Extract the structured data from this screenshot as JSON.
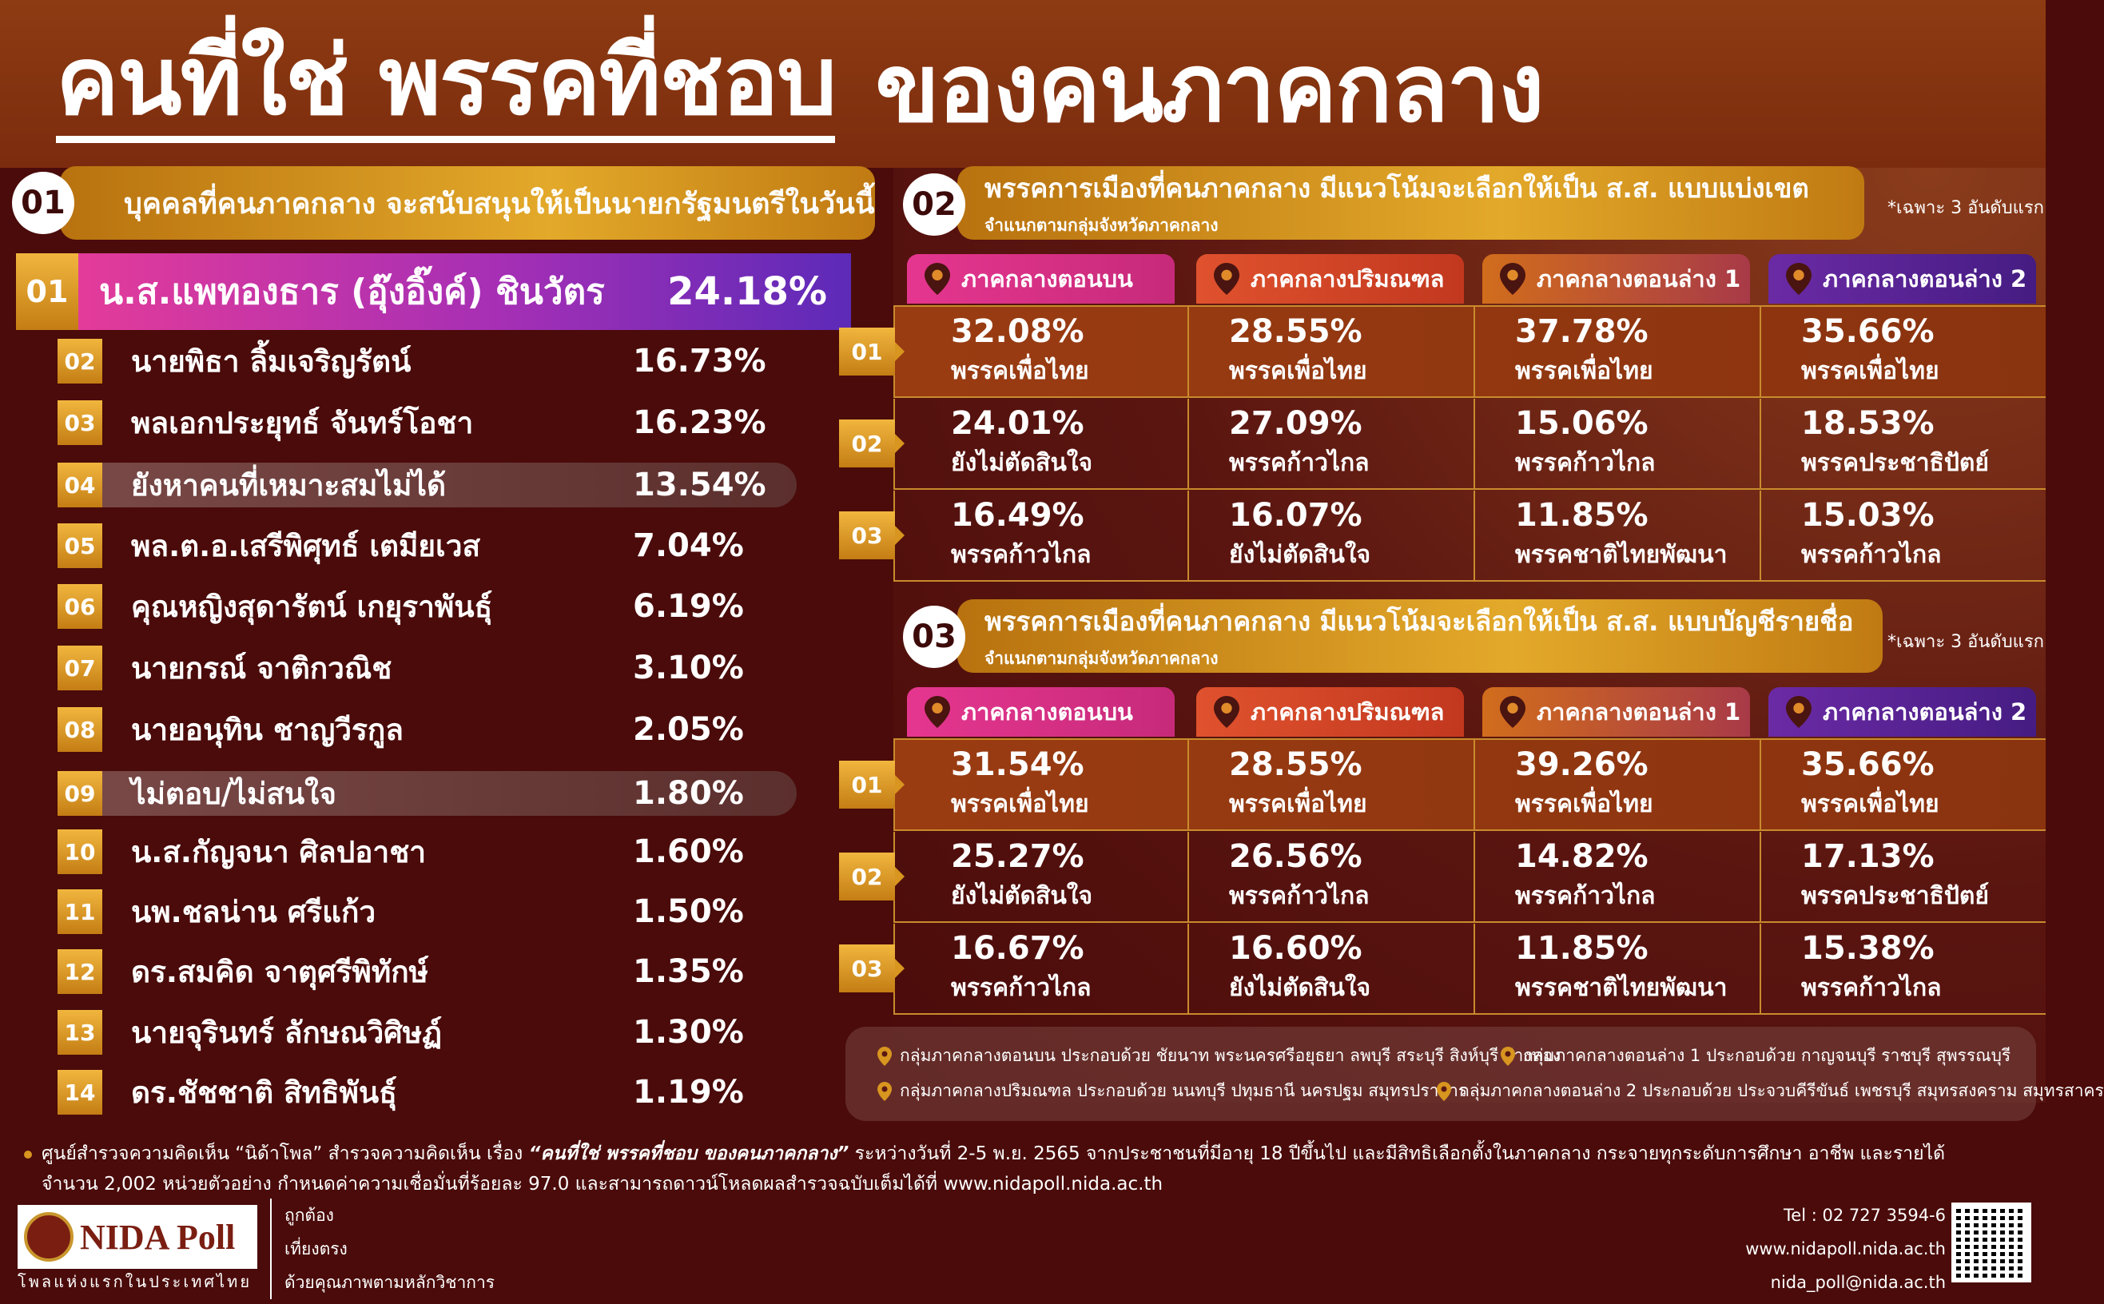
{
  "title": {
    "part1": "คนที่ใช่ พรรคที่ชอบ",
    "part2": "ของคนภาคกลาง"
  },
  "section1": {
    "num": "01",
    "heading": "บุคคลที่คนภาคกลาง จะสนับสนุนให้เป็นนายกรัฐมนตรีในวันนี้",
    "top": {
      "rank": "01",
      "name": "น.ส.แพทองธาร (อุ๊งอิ๊งค์) ชินวัตร",
      "pct": "24.18%"
    },
    "rows": [
      {
        "rank": "02",
        "name": "นายพิธา ลิ้มเจริญรัตน์",
        "pct": "16.73%"
      },
      {
        "rank": "03",
        "name": "พลเอกประยุทธ์ จันทร์โอชา",
        "pct": "16.23%"
      },
      {
        "rank": "04",
        "name": "ยังหาคนที่เหมาะสมไม่ได้",
        "pct": "13.54%"
      },
      {
        "rank": "05",
        "name": "พล.ต.อ.เสรีพิศุทธ์ เตมียเวส",
        "pct": "7.04%"
      },
      {
        "rank": "06",
        "name": "คุณหญิงสุดารัตน์ เกยุราพันธุ์",
        "pct": "6.19%"
      },
      {
        "rank": "07",
        "name": "นายกรณ์ จาติกวณิช",
        "pct": "3.10%"
      },
      {
        "rank": "08",
        "name": "นายอนุทิน ชาญวีรกูล",
        "pct": "2.05%"
      },
      {
        "rank": "09",
        "name": "ไม่ตอบ/ไม่สนใจ",
        "pct": "1.80%"
      },
      {
        "rank": "10",
        "name": "น.ส.กัญจนา ศิลปอาชา",
        "pct": "1.60%"
      },
      {
        "rank": "11",
        "name": "นพ.ชลน่าน ศรีแก้ว",
        "pct": "1.50%"
      },
      {
        "rank": "12",
        "name": "ดร.สมคิด จาตุศรีพิทักษ์",
        "pct": "1.35%"
      },
      {
        "rank": "13",
        "name": "นายจุรินทร์ ลักษณวิศิษฏ์",
        "pct": "1.30%"
      },
      {
        "rank": "14",
        "name": "ดร.ชัชชาติ สิทธิพันธุ์",
        "pct": "1.19%"
      }
    ]
  },
  "section2": {
    "num": "02",
    "heading": "พรรคการเมืองที่คนภาคกลาง มีแนวโน้มจะเลือกให้เป็น ส.ส. แบบแบ่งเขต",
    "sub": "จำแนกตามกลุ่มจังหวัดภาคกลาง",
    "note": "*เฉพาะ 3 อันดับแรก",
    "regions": [
      "ภาคกลางตอนบน",
      "ภาคกลางปริมณฑล",
      "ภาคกลางตอนล่าง 1",
      "ภาคกลางตอนล่าง 2"
    ],
    "ranks": [
      "01",
      "02",
      "03"
    ],
    "rows": [
      [
        {
          "pct": "32.08%",
          "party": "พรรคเพื่อไทย"
        },
        {
          "pct": "28.55%",
          "party": "พรรคเพื่อไทย"
        },
        {
          "pct": "37.78%",
          "party": "พรรคเพื่อไทย"
        },
        {
          "pct": "35.66%",
          "party": "พรรคเพื่อไทย"
        }
      ],
      [
        {
          "pct": "24.01%",
          "party": "ยังไม่ตัดสินใจ"
        },
        {
          "pct": "27.09%",
          "party": "พรรคก้าวไกล"
        },
        {
          "pct": "15.06%",
          "party": "พรรคก้าวไกล"
        },
        {
          "pct": "18.53%",
          "party": "พรรคประชาธิปัตย์"
        }
      ],
      [
        {
          "pct": "16.49%",
          "party": "พรรคก้าวไกล"
        },
        {
          "pct": "16.07%",
          "party": "ยังไม่ตัดสินใจ"
        },
        {
          "pct": "11.85%",
          "party": "พรรคชาติไทยพัฒนา"
        },
        {
          "pct": "15.03%",
          "party": "พรรคก้าวไกล"
        }
      ]
    ]
  },
  "section3": {
    "num": "03",
    "heading": "พรรคการเมืองที่คนภาคกลาง มีแนวโน้มจะเลือกให้เป็น ส.ส. แบบบัญชีรายชื่อ",
    "sub": "จำแนกตามกลุ่มจังหวัดภาคกลาง",
    "note": "*เฉพาะ 3 อันดับแรก",
    "regions": [
      "ภาคกลางตอนบน",
      "ภาคกลางปริมณฑล",
      "ภาคกลางตอนล่าง 1",
      "ภาคกลางตอนล่าง 2"
    ],
    "ranks": [
      "01",
      "02",
      "03"
    ],
    "rows": [
      [
        {
          "pct": "31.54%",
          "party": "พรรคเพื่อไทย"
        },
        {
          "pct": "28.55%",
          "party": "พรรคเพื่อไทย"
        },
        {
          "pct": "39.26%",
          "party": "พรรคเพื่อไทย"
        },
        {
          "pct": "35.66%",
          "party": "พรรคเพื่อไทย"
        }
      ],
      [
        {
          "pct": "25.27%",
          "party": "ยังไม่ตัดสินใจ"
        },
        {
          "pct": "26.56%",
          "party": "พรรคก้าวไกล"
        },
        {
          "pct": "14.82%",
          "party": "พรรคก้าวไกล"
        },
        {
          "pct": "17.13%",
          "party": "พรรคประชาธิปัตย์"
        }
      ],
      [
        {
          "pct": "16.67%",
          "party": "พรรคก้าวไกล"
        },
        {
          "pct": "16.60%",
          "party": "ยังไม่ตัดสินใจ"
        },
        {
          "pct": "11.85%",
          "party": "พรรคชาติไทยพัฒนา"
        },
        {
          "pct": "15.38%",
          "party": "พรรคก้าวไกล"
        }
      ]
    ]
  },
  "legend": [
    "กลุ่มภาคกลางตอนบน ประกอบด้วย ชัยนาท พระนครศรีอยุธยา ลพบุรี สระบุรี สิงห์บุรี อ่างทอง",
    "กลุ่มภาคกลางตอนล่าง 1 ประกอบด้วย กาญจนบุรี ราชบุรี สุพรรณบุรี",
    "กลุ่มภาคกลางปริมณฑล ประกอบด้วย นนทบุรี ปทุมธานี นครปฐม สมุทรปราการ",
    "กลุ่มภาคกลางตอนล่าง 2 ประกอบด้วย ประจวบคีรีขันธ์ เพชรบุรี สมุทรสงคราม สมุทรสาคร"
  ],
  "footer": {
    "line1_a": "ศูนย์สำรวจความคิดเห็น “นิด้าโพล” สำรวจความคิดเห็น เรื่อง",
    "line1_b": "“คนที่ใช่ พรรคที่ชอบ ของคนภาคกลาง”",
    "line1_c": "ระหว่างวันที่ 2-5 พ.ย. 2565 จากประชาชนที่มีอายุ 18 ปีขึ้นไป และมีสิทธิเลือกตั้งในภาคกลาง กระจายทุกระดับการศึกษา อาชีพ และรายได้",
    "line2": "จำนวน 2,002 หน่วยตัวอย่าง กำหนดค่าความเชื่อมั่นที่ร้อยละ 97.0 และสามารถดาวน์โหลดผลสำรวจฉบับเต็มได้ที่ www.nidapoll.nida.ac.th",
    "logo": "NIDA Poll",
    "logo_tag": "โพลแห่งแรกในประเทศไทย",
    "taglines": [
      "ถูกต้อง",
      "เที่ยงตรง",
      "ด้วยคุณภาพตามหลักวิชาการ"
    ],
    "tel": "Tel : 02 727 3594-6",
    "web": "www.nidapoll.nida.ac.th",
    "email": "nida_poll@nida.ac.th"
  },
  "colors": {
    "background": "#4a0b0a",
    "header": "#7c2c0e",
    "gold": "#d8951f",
    "pink": "#e5368f",
    "purple": "#5d2ab8"
  }
}
